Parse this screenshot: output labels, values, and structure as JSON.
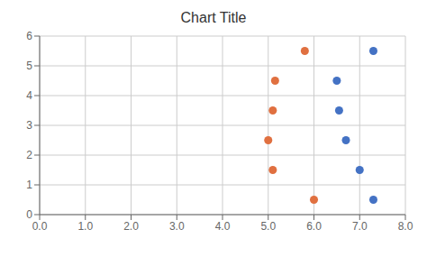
{
  "chart_data": {
    "type": "scatter",
    "title": "Chart Title",
    "series": [
      {
        "color": "#E07040",
        "x": [
          5.0,
          5.15,
          5.1,
          5.1,
          5.8,
          6.0
        ],
        "y": [
          2.5,
          4.5,
          3.5,
          1.5,
          5.5,
          0.5
        ]
      },
      {
        "color": "#4472C4",
        "x": [
          6.55,
          6.5,
          6.7,
          7.0,
          7.3,
          7.3
        ],
        "y": [
          3.5,
          4.5,
          2.5,
          1.5,
          5.5,
          0.5
        ]
      }
    ],
    "xlim": [
      0.0,
      8.0
    ],
    "ylim": [
      0.0,
      6.0
    ],
    "xticks": [
      {
        "value": 0.0,
        "label": "0.0"
      },
      {
        "value": 1.0,
        "label": "1.0"
      },
      {
        "value": 2.0,
        "label": "2.0"
      },
      {
        "value": 3.0,
        "label": "3.0"
      },
      {
        "value": 4.0,
        "label": "4.0"
      },
      {
        "value": 5.0,
        "label": "5.0"
      },
      {
        "value": 6.0,
        "label": "6.0"
      },
      {
        "value": 7.0,
        "label": "7.0"
      },
      {
        "value": 8.0,
        "label": "8.0"
      }
    ],
    "yticks": [
      0,
      1,
      2,
      3,
      4,
      5,
      6
    ],
    "grid": true
  }
}
